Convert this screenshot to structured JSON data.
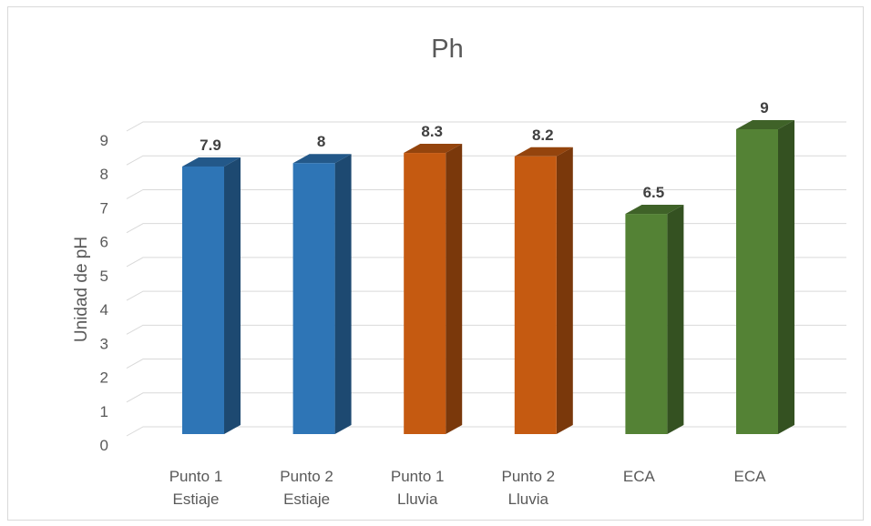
{
  "chart_data": {
    "type": "bar",
    "title": "Ph",
    "ylabel": "Unidad de pH",
    "xlabel": "",
    "categories": [
      [
        "Punto 1",
        "Estiaje"
      ],
      [
        "Punto 2",
        "Estiaje"
      ],
      [
        "Punto 1",
        "Lluvia"
      ],
      [
        "Punto 2",
        "Lluvia"
      ],
      [
        "ECA"
      ],
      [
        "ECA"
      ]
    ],
    "values": [
      7.9,
      8,
      8.3,
      8.2,
      6.5,
      9
    ],
    "data_labels": [
      "7.9",
      "8",
      "8.3",
      "8.2",
      "6.5",
      "9"
    ],
    "ylim": [
      0,
      9
    ],
    "yticks": [
      "0",
      "1",
      "2",
      "3",
      "4",
      "5",
      "6",
      "7",
      "8",
      "9"
    ],
    "grid": true,
    "style": "3d-column",
    "bar_colors": [
      "#2e75b6",
      "#2e75b6",
      "#c55a11",
      "#c55a11",
      "#548235",
      "#548235"
    ]
  }
}
